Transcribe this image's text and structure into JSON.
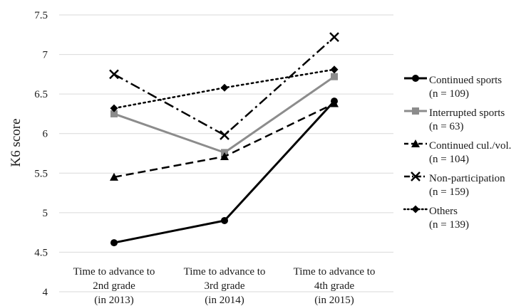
{
  "chart_data": {
    "type": "line",
    "ylabel": "K6 score",
    "ylim": [
      4,
      7.5
    ],
    "yticks": [
      "4",
      "4.5",
      "5",
      "5.5",
      "6",
      "6.5",
      "7",
      "7.5"
    ],
    "categories": [
      [
        "Time to advance to",
        "2nd grade",
        "(in 2013)"
      ],
      [
        "Time to advance to",
        "3rd grade",
        "(in 2014)"
      ],
      [
        "Time to advance to",
        "4th grade",
        "(in 2015)"
      ]
    ],
    "grid": true,
    "legend_position": "right",
    "series": [
      {
        "name": "Continued sports",
        "n": "(n = 109)",
        "values": [
          4.62,
          4.9,
          6.41
        ],
        "color": "#000000",
        "dash": "solid",
        "marker": "circle",
        "width": 3
      },
      {
        "name": "Interrupted sports",
        "n": "(n = 63)",
        "values": [
          6.25,
          5.76,
          6.72
        ],
        "color": "#8c8c8c",
        "dash": "solid",
        "marker": "square",
        "width": 3
      },
      {
        "name": "Continued cul./vol.",
        "n": "(n = 104)",
        "values": [
          5.45,
          5.71,
          6.38
        ],
        "color": "#000000",
        "dash": "dash",
        "marker": "triangle",
        "width": 2.5
      },
      {
        "name": "Non-participation",
        "n": "(n = 159)",
        "values": [
          6.75,
          5.98,
          7.22
        ],
        "color": "#000000",
        "dash": "dashdot",
        "marker": "x",
        "width": 2.5
      },
      {
        "name": "Others",
        "n": "(n = 139)",
        "values": [
          6.32,
          6.58,
          6.81
        ],
        "color": "#000000",
        "dash": "dot",
        "marker": "diamond",
        "width": 2.5
      }
    ]
  }
}
